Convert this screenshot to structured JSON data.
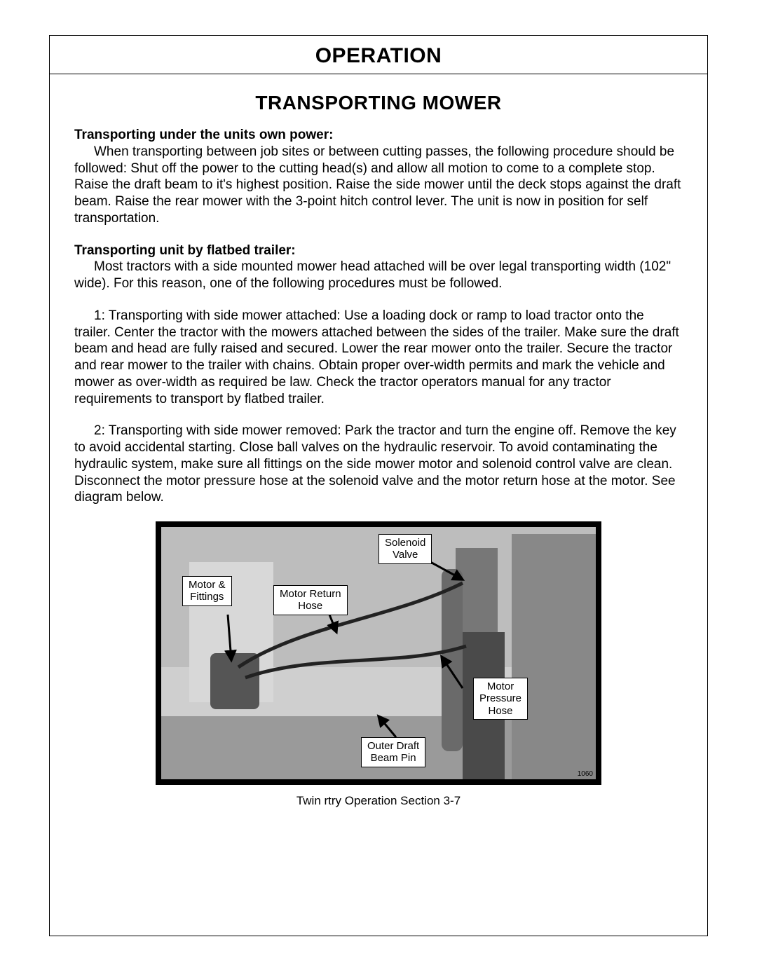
{
  "header": {
    "title": "OPERATION"
  },
  "section": {
    "title": "TRANSPORTING MOWER",
    "s1_head": "Transporting under the units own power:",
    "s1_body": "When transporting between job sites or between cutting passes, the following procedure should be followed:   Shut off the power to the cutting head(s) and allow all motion to come to a complete stop.   Raise the draft beam to it's highest position.   Raise the side mower until the deck stops against the draft beam.   Raise the rear mower with the 3-point hitch control lever.   The unit is now in position for self transportation.",
    "s2_head": "Transporting unit by flatbed trailer:",
    "s2_body": "Most tractors with a side mounted mower head attached will be over legal transporting width (102\" wide).   For this reason, one of the following procedures must be followed.",
    "s2_p1": "1:  Transporting with side mower attached:   Use a loading dock or ramp to load tractor onto the trailer.   Center the tractor with the mowers attached between the sides of the trailer.   Make sure the draft beam and head are fully raised and secured.   Lower the rear  mower onto the trailer.   Secure the tractor and rear mower to the trailer with chains.   Obtain proper over-width permits and mark the vehicle and mower as over-width as required be law.   Check the tractor operators manual for any tractor requirements to transport by flatbed trailer.",
    "s2_p2": "2:  Transporting with side mower removed:   Park the tractor and turn the engine off.   Remove the key to avoid accidental starting.   Close ball valves on the hydraulic reservoir.   To avoid contaminating the hydraulic system, make sure all fittings on the side mower motor and solenoid control valve are clean.   Disconnect the motor pressure hose at the solenoid valve and the motor return hose at the motor.   See diagram below."
  },
  "diagram": {
    "labels": {
      "solenoid": "Solenoid\nValve",
      "motor_fittings": "Motor &\nFittings",
      "motor_return": "Motor Return\nHose",
      "motor_pressure": "Motor\nPressure\nHose",
      "outer_draft": "Outer Draft\nBeam Pin"
    },
    "corner_id": "1060",
    "colors": {
      "border": "#000000",
      "bg": "#bdbdbd",
      "shape": "#8a8a8a",
      "label_bg": "#ffffff",
      "label_border": "#000000"
    }
  },
  "footer": {
    "text": "Twin rtry Operation Section   3-7"
  }
}
